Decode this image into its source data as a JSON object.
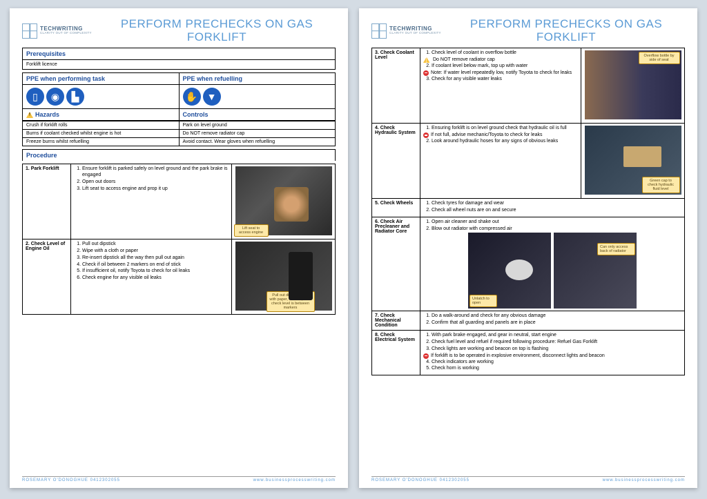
{
  "colors": {
    "accent": "#5b9bd5",
    "heading": "#1f4e9c",
    "ppe_blue": "#1f5fbf",
    "callout_bg": "#fde9a8",
    "callout_border": "#b8860b",
    "page_bg": "#d4dce4",
    "warn_yellow": "#f6c344",
    "stop_red": "#d33"
  },
  "logo": {
    "line1": "TECHWRITING",
    "line2": "CLARITY OUT OF COMPLEXITY"
  },
  "title": "PERFORM PRECHECKS ON GAS FORKLIFT",
  "footer": {
    "left": "ROSEMARY O'DONOGHUE 0412302055",
    "right": "www.businessprocesswriting.com"
  },
  "page1": {
    "prereq": {
      "header": "Prerequisites",
      "body": "Forklift licence"
    },
    "ppe": {
      "left_header": "PPE when performing task",
      "right_header": "PPE when refuelling",
      "left_icons": [
        "vest-icon",
        "goggles-icon",
        "boots-icon"
      ],
      "right_icons": [
        "gloves-icon",
        "apron-icon"
      ]
    },
    "hazards": {
      "left_header": "Hazards",
      "right_header": "Controls",
      "rows": [
        {
          "h": "Crush if forklift rolls",
          "c": "Park on level ground"
        },
        {
          "h": "Burns if coolant checked whilst engine is hot",
          "c": "Do NOT remove radiator cap"
        },
        {
          "h": "Freeze burns whilst refuelling",
          "c": "Avoid contact. Wear gloves when refuelling"
        }
      ]
    },
    "procedure_header": "Procedure",
    "steps": [
      {
        "label": "1. Park Forklift",
        "items": [
          "Ensure forklift is parked safely on level ground and the park brake is engaged",
          "Open out doors",
          "Lift seat to access engine and prop it up"
        ],
        "callout": "Lift seat to access engine"
      },
      {
        "label": "2. Check Level of Engine Oil",
        "items": [
          "Pull out dipstick",
          "Wipe with a cloth or paper",
          "Re-insert dipstick all the way then pull out again",
          "Check if oil between 2 markers on end of stick",
          "If insufficient oil, notify Toyota to check for oil leaks",
          "Check engine for any visible oil leaks"
        ],
        "callout": "Pull out dipstick, wipe with paper, reinsert, then check level is between markers"
      }
    ]
  },
  "page2": {
    "steps": [
      {
        "label": "3. Check Coolant Level",
        "items": [
          "Check level of coolant in overflow bottle",
          "If coolant level below mark, top up with water",
          "Check for any visible water leaks"
        ],
        "warn": "Do NOT remove radiator cap",
        "note": "Note: If water level repeatedly low, notify Toyota to check for leaks",
        "callout": "Overflow bottle by side of seat"
      },
      {
        "label": "4. Check Hydraulic System",
        "items": [
          "Ensuring forklift is on level ground check that hydraulic oil is full",
          "Look around hydraulic hoses for any signs of obvious leaks"
        ],
        "note": "If not full, advise mechanic/Toyota to check for leaks",
        "callout": "Green cap to check hydraulic fluid level"
      },
      {
        "label": "5. Check Wheels",
        "items": [
          "Check tyres for damage and wear",
          "Check all wheel nuts are on and secure"
        ]
      },
      {
        "label": "6. Check Air Precleaner and Radiator Core",
        "items": [
          "Open air cleaner and shake out",
          "Blow out radiator with compressed air"
        ],
        "callout1": "Unlatch to open",
        "callout2": "Can only access back of radiator"
      },
      {
        "label": "7. Check Mechanical Condition",
        "items": [
          "Do a walk-around and check for any obvious damage",
          "Confirm that all guarding and panels are in place"
        ]
      },
      {
        "label": "8. Check Electrical System",
        "items": [
          "With park brake engaged, and gear in neutral, start engine",
          "Check fuel level and refuel if required following procedure: Refuel Gas Forklift",
          "Check lights are working and beacon on top is flashing",
          "Check indicators are working",
          "Check horn is working"
        ],
        "note": "If forklift is to be operated in explosive environment, disconnect lights and beacon"
      }
    ]
  }
}
